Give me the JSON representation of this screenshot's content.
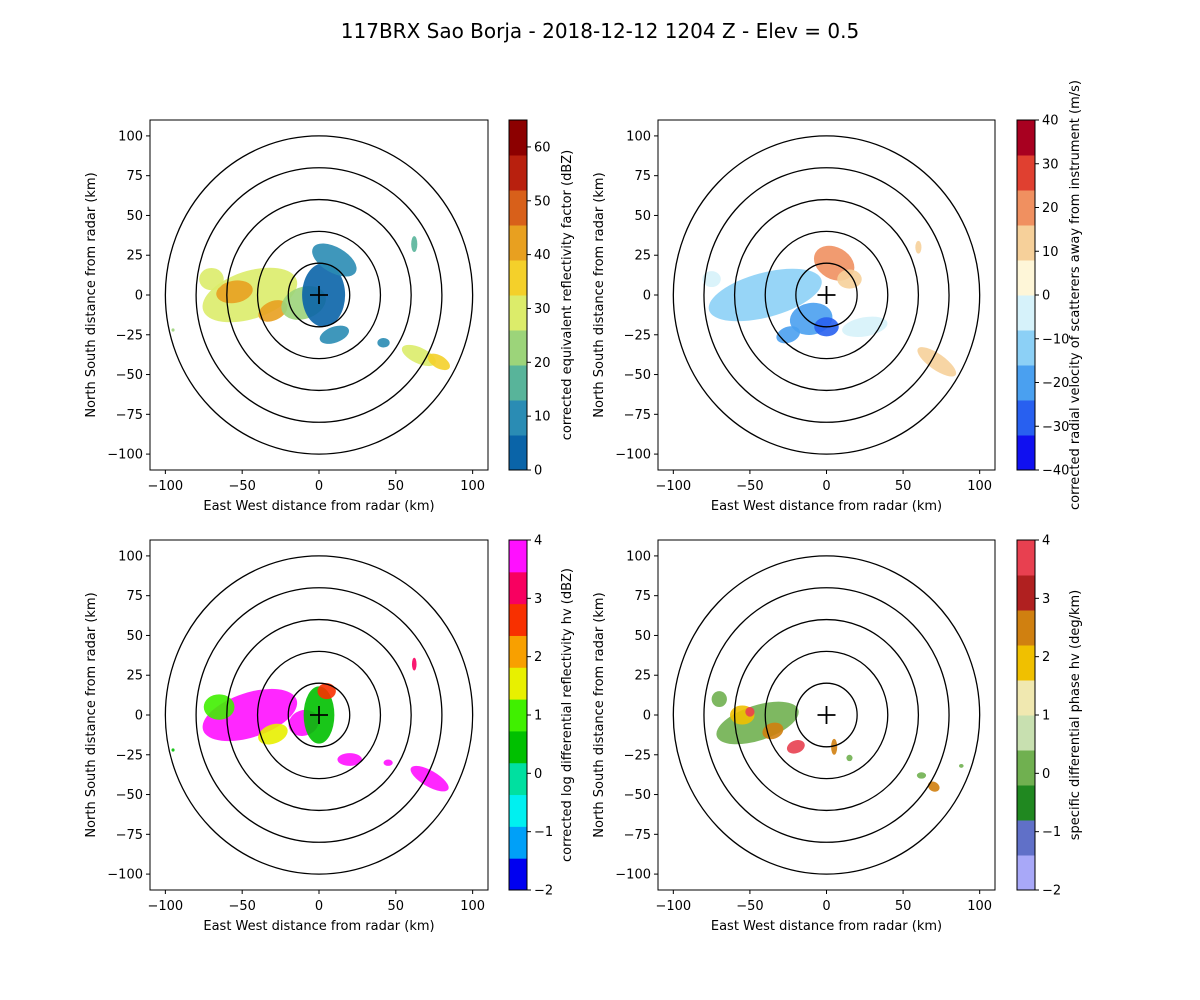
{
  "title": "117BRX Sao Borja - 2018-12-12 1204 Z -  Elev = 0.5",
  "chart_data": [
    {
      "type": "heatmap",
      "field": "reflectivity",
      "xlabel": "East West distance from radar (km)",
      "ylabel": "North South distance from radar (km)",
      "xlim": [
        -110,
        110
      ],
      "ylim": [
        -110,
        110
      ],
      "xticks": [
        -100,
        -50,
        0,
        50,
        100
      ],
      "yticks": [
        -100,
        -75,
        -50,
        -25,
        0,
        25,
        50,
        75,
        100
      ],
      "range_rings_km": [
        20,
        40,
        60,
        80,
        100
      ],
      "colorbar": {
        "label": "corrected equivalent reflectivity factor (dBZ)",
        "vmin": 0,
        "vmax": 65,
        "ticks": [
          0,
          10,
          20,
          30,
          40,
          50,
          60
        ],
        "colors": [
          "#0a64a8",
          "#2a8cb4",
          "#58b49a",
          "#9cd47a",
          "#dcec6a",
          "#f4d02a",
          "#e8a020",
          "#d8601a",
          "#b8200e",
          "#8c0000"
        ]
      },
      "echoes": [
        {
          "x": -45,
          "y": 0,
          "rx": 32,
          "ry": 15,
          "rot": 18,
          "value": 32
        },
        {
          "x": -55,
          "y": 2,
          "rx": 12,
          "ry": 7,
          "rot": 10,
          "value": 45
        },
        {
          "x": -30,
          "y": -10,
          "rx": 10,
          "ry": 6,
          "rot": 25,
          "value": 44
        },
        {
          "x": -70,
          "y": 10,
          "rx": 8,
          "ry": 7,
          "rot": 0,
          "value": 30
        },
        {
          "x": -10,
          "y": -5,
          "rx": 15,
          "ry": 10,
          "rot": 20,
          "value": 22
        },
        {
          "x": 3,
          "y": 0,
          "rx": 14,
          "ry": 20,
          "rot": 0,
          "value": 6
        },
        {
          "x": 10,
          "y": 22,
          "rx": 16,
          "ry": 8,
          "rot": -30,
          "value": 8
        },
        {
          "x": 10,
          "y": -25,
          "rx": 10,
          "ry": 5,
          "rot": 20,
          "value": 12
        },
        {
          "x": 65,
          "y": -38,
          "rx": 12,
          "ry": 5,
          "rot": -25,
          "value": 28
        },
        {
          "x": 78,
          "y": -42,
          "rx": 8,
          "ry": 4,
          "rot": -30,
          "value": 33
        },
        {
          "x": 42,
          "y": -30,
          "rx": 4,
          "ry": 3,
          "rot": 0,
          "value": 12
        },
        {
          "x": 62,
          "y": 32,
          "rx": 2,
          "ry": 5,
          "rot": 0,
          "value": 18
        },
        {
          "x": -95,
          "y": -22,
          "rx": 1,
          "ry": 1,
          "rot": 0,
          "value": 25
        }
      ]
    },
    {
      "type": "heatmap",
      "field": "velocity",
      "xlabel": "East West distance from radar (km)",
      "ylabel": "North South distance from radar (km)",
      "xlim": [
        -110,
        110
      ],
      "ylim": [
        -110,
        110
      ],
      "xticks": [
        -100,
        -50,
        0,
        50,
        100
      ],
      "yticks": [
        -100,
        -75,
        -50,
        -25,
        0,
        25,
        50,
        75,
        100
      ],
      "range_rings_km": [
        20,
        40,
        60,
        80,
        100
      ],
      "colorbar": {
        "label": "corrected radial velocity of scatterers away from instrument (m/s)",
        "vmin": -40,
        "vmax": 40,
        "ticks": [
          -40,
          -30,
          -20,
          -10,
          0,
          10,
          20,
          30,
          40
        ],
        "colors": [
          "#1010f0",
          "#2860f0",
          "#4aa0f0",
          "#8cd0f6",
          "#d6f2fa",
          "#fef6d8",
          "#f6d09a",
          "#f09060",
          "#e04030",
          "#a80020"
        ]
      },
      "echoes": [
        {
          "x": -40,
          "y": 0,
          "rx": 38,
          "ry": 14,
          "rot": 15,
          "value": -10
        },
        {
          "x": -10,
          "y": -15,
          "rx": 14,
          "ry": 10,
          "rot": 10,
          "value": -18
        },
        {
          "x": 0,
          "y": -20,
          "rx": 8,
          "ry": 6,
          "rot": 0,
          "value": -28
        },
        {
          "x": -25,
          "y": -25,
          "rx": 8,
          "ry": 5,
          "rot": 20,
          "value": -22
        },
        {
          "x": 5,
          "y": 20,
          "rx": 14,
          "ry": 10,
          "rot": -30,
          "value": 22
        },
        {
          "x": 15,
          "y": 10,
          "rx": 8,
          "ry": 6,
          "rot": 0,
          "value": 10
        },
        {
          "x": 25,
          "y": -20,
          "rx": 15,
          "ry": 6,
          "rot": 10,
          "value": -5
        },
        {
          "x": 72,
          "y": -42,
          "rx": 15,
          "ry": 5,
          "rot": -35,
          "value": 8
        },
        {
          "x": -75,
          "y": 10,
          "rx": 6,
          "ry": 5,
          "rot": 0,
          "value": -8
        },
        {
          "x": 60,
          "y": 30,
          "rx": 2,
          "ry": 4,
          "rot": 0,
          "value": 12
        }
      ]
    },
    {
      "type": "heatmap",
      "field": "differential_reflectivity",
      "xlabel": "East West distance from radar (km)",
      "ylabel": "North South distance from radar (km)",
      "xlim": [
        -110,
        110
      ],
      "ylim": [
        -110,
        110
      ],
      "xticks": [
        -100,
        -50,
        0,
        50,
        100
      ],
      "yticks": [
        -100,
        -75,
        -50,
        -25,
        0,
        25,
        50,
        75,
        100
      ],
      "range_rings_km": [
        20,
        40,
        60,
        80,
        100
      ],
      "colorbar": {
        "label": "corrected log differential reflectivity hv (dBZ)",
        "vmin": -2,
        "vmax": 4,
        "ticks": [
          -2,
          -1,
          0,
          1,
          2,
          3,
          4
        ],
        "colors": [
          "#0000f0",
          "#00a0f8",
          "#00f0f0",
          "#00e0a0",
          "#00c000",
          "#40f000",
          "#e8f000",
          "#f8a000",
          "#f83000",
          "#f80060",
          "#ff10ff"
        ]
      },
      "echoes": [
        {
          "x": -45,
          "y": 0,
          "rx": 32,
          "ry": 14,
          "rot": 18,
          "value": 3.8
        },
        {
          "x": -65,
          "y": 5,
          "rx": 10,
          "ry": 8,
          "rot": 0,
          "value": 1.2
        },
        {
          "x": -30,
          "y": -12,
          "rx": 10,
          "ry": 6,
          "rot": 20,
          "value": 1.8
        },
        {
          "x": -10,
          "y": -5,
          "rx": 10,
          "ry": 8,
          "rot": 20,
          "value": 4.0
        },
        {
          "x": 0,
          "y": 0,
          "rx": 10,
          "ry": 18,
          "rot": 0,
          "value": 0.6
        },
        {
          "x": 5,
          "y": 15,
          "rx": 6,
          "ry": 5,
          "rot": 0,
          "value": 2.4
        },
        {
          "x": 20,
          "y": -28,
          "rx": 8,
          "ry": 4,
          "rot": 0,
          "value": 4.0
        },
        {
          "x": 72,
          "y": -40,
          "rx": 14,
          "ry": 5,
          "rot": -30,
          "value": 4.0
        },
        {
          "x": 45,
          "y": -30,
          "rx": 3,
          "ry": 2,
          "rot": 0,
          "value": 4.0
        },
        {
          "x": 62,
          "y": 32,
          "rx": 1.5,
          "ry": 4,
          "rot": 0,
          "value": 3.0
        },
        {
          "x": -95,
          "y": -22,
          "rx": 1,
          "ry": 1,
          "rot": 0,
          "value": 0.5
        }
      ]
    },
    {
      "type": "heatmap",
      "field": "specific_differential_phase",
      "xlabel": "East West distance from radar (km)",
      "ylabel": "North South distance from radar (km)",
      "xlim": [
        -110,
        110
      ],
      "ylim": [
        -110,
        110
      ],
      "xticks": [
        -100,
        -50,
        0,
        50,
        100
      ],
      "yticks": [
        -100,
        -75,
        -50,
        -25,
        0,
        25,
        50,
        75,
        100
      ],
      "range_rings_km": [
        20,
        40,
        60,
        80,
        100
      ],
      "colorbar": {
        "label": "specific differential phase hv (deg/km)",
        "vmin": -2,
        "vmax": 4,
        "ticks": [
          -2,
          -1,
          0,
          1,
          2,
          3,
          4
        ],
        "colors": [
          "#a8a8f8",
          "#6070c8",
          "#208820",
          "#70b050",
          "#c8e0b0",
          "#f0e8b0",
          "#f0c000",
          "#d08010",
          "#b02020",
          "#e84050"
        ]
      },
      "echoes": [
        {
          "x": -45,
          "y": -5,
          "rx": 28,
          "ry": 11,
          "rot": 18,
          "value": 0.2
        },
        {
          "x": -55,
          "y": 0,
          "rx": 8,
          "ry": 6,
          "rot": 0,
          "value": 1.8
        },
        {
          "x": -35,
          "y": -10,
          "rx": 7,
          "ry": 5,
          "rot": 20,
          "value": 2.3
        },
        {
          "x": -20,
          "y": -20,
          "rx": 6,
          "ry": 4,
          "rot": 20,
          "value": 3.5
        },
        {
          "x": -50,
          "y": 2,
          "rx": 3,
          "ry": 3,
          "rot": 0,
          "value": 3.6
        },
        {
          "x": -70,
          "y": 10,
          "rx": 5,
          "ry": 5,
          "rot": 0,
          "value": 0.4
        },
        {
          "x": 70,
          "y": -45,
          "rx": 4,
          "ry": 3,
          "rot": -30,
          "value": 2.2
        },
        {
          "x": 62,
          "y": -38,
          "rx": 3,
          "ry": 2,
          "rot": 0,
          "value": 0.3
        },
        {
          "x": 88,
          "y": -32,
          "rx": 1.5,
          "ry": 1.2,
          "rot": 0,
          "value": 0.0
        },
        {
          "x": 5,
          "y": -20,
          "rx": 2,
          "ry": 5,
          "rot": 0,
          "value": 2.5
        },
        {
          "x": 15,
          "y": -27,
          "rx": 2,
          "ry": 2,
          "rot": 0,
          "value": 0.0
        }
      ]
    }
  ]
}
